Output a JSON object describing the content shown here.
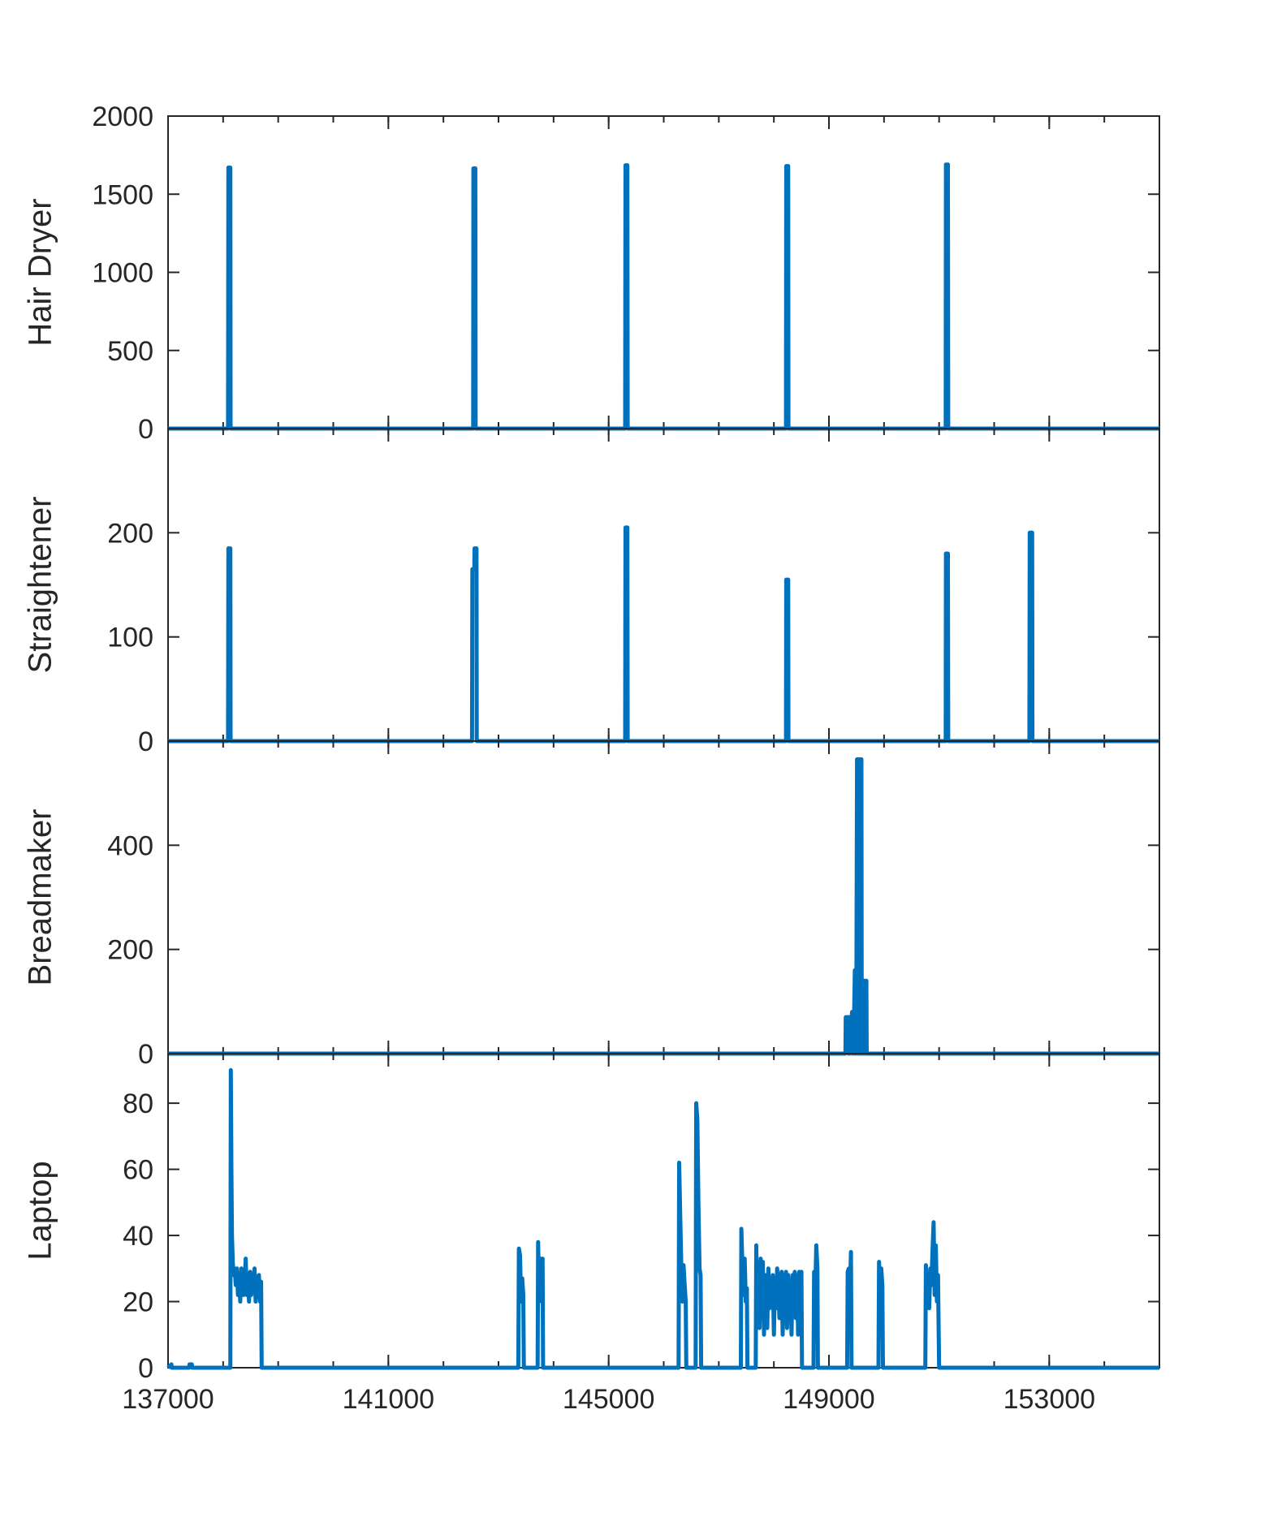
{
  "chart_data": {
    "type": "line",
    "xlim": [
      137000,
      155000
    ],
    "x_ticks": [
      137000,
      141000,
      145000,
      149000,
      153000
    ],
    "x_tick_labels": [
      "137000",
      "141000",
      "145000",
      "149000",
      "153000"
    ],
    "series_color": "#0072BD",
    "grid": false,
    "legend": "none",
    "panels": [
      {
        "ylabel": "Hair Dryer",
        "ylim": [
          0,
          2000
        ],
        "y_ticks": [
          0,
          500,
          1000,
          1500,
          2000
        ],
        "y_tick_labels": [
          "0",
          "500",
          "1000",
          "1500",
          "2000"
        ],
        "series": {
          "x": [
            137000,
            138090,
            138095,
            138130,
            138135,
            142540,
            142545,
            142580,
            142585,
            145300,
            145305,
            145340,
            145345,
            148220,
            148225,
            148260,
            148265,
            151120,
            151125,
            151160,
            151165,
            155000
          ],
          "values": [
            0,
            0,
            1670,
            1670,
            0,
            0,
            1665,
            1665,
            0,
            0,
            1685,
            1685,
            0,
            0,
            1680,
            1680,
            0,
            0,
            1690,
            1690,
            0,
            0
          ]
        }
      },
      {
        "ylabel": "Straightener",
        "ylim": [
          0,
          300
        ],
        "y_ticks": [
          0,
          100,
          200
        ],
        "y_tick_labels": [
          "0",
          "100",
          "200"
        ],
        "series": {
          "x": [
            137000,
            138090,
            138095,
            138130,
            138135,
            142520,
            142525,
            142560,
            142565,
            142600,
            142605,
            145300,
            145305,
            145340,
            145345,
            148220,
            148225,
            148260,
            148265,
            151120,
            151125,
            151160,
            151165,
            152640,
            152645,
            152690,
            152695,
            155000
          ],
          "values": [
            0,
            0,
            185,
            185,
            0,
            0,
            165,
            165,
            185,
            185,
            0,
            0,
            205,
            205,
            0,
            0,
            155,
            155,
            0,
            0,
            180,
            180,
            0,
            0,
            200,
            200,
            0,
            0
          ]
        }
      },
      {
        "ylabel": "Breadmaker",
        "ylim": [
          0,
          600
        ],
        "y_ticks": [
          0,
          200,
          400
        ],
        "y_tick_labels": [
          "0",
          "200",
          "400"
        ],
        "series": {
          "x": [
            137000,
            149300,
            149305,
            149350,
            149355,
            149370,
            149375,
            149420,
            149425,
            149440,
            149445,
            149470,
            149475,
            149490,
            149495,
            149510,
            149515,
            149530,
            149535,
            149550,
            149555,
            149560,
            149565,
            149575,
            149580,
            149590,
            149595,
            149605,
            149610,
            149620,
            149625,
            149640,
            149645,
            149660,
            149665,
            149680,
            149685,
            155000
          ],
          "values": [
            0,
            0,
            70,
            70,
            0,
            70,
            0,
            80,
            0,
            80,
            0,
            160,
            0,
            160,
            0,
            565,
            565,
            565,
            0,
            565,
            0,
            565,
            0,
            565,
            0,
            565,
            0,
            140,
            0,
            140,
            0,
            140,
            0,
            140,
            0,
            140,
            0,
            0
          ]
        }
      },
      {
        "ylabel": "Laptop",
        "ylim": [
          0,
          95
        ],
        "y_ticks": [
          0,
          20,
          40,
          60,
          80
        ],
        "y_tick_labels": [
          "0",
          "20",
          "40",
          "60",
          "80"
        ],
        "series": {
          "x": [
            137000,
            137060,
            137070,
            137380,
            137390,
            137430,
            137440,
            138130,
            138140,
            138150,
            138160,
            138175,
            138190,
            138210,
            138230,
            138250,
            138270,
            138290,
            138310,
            138330,
            138350,
            138370,
            138390,
            138410,
            138430,
            138450,
            138470,
            138490,
            138510,
            138530,
            138550,
            138570,
            138590,
            138610,
            138630,
            138650,
            138670,
            138690,
            138700,
            143360,
            143370,
            143390,
            143410,
            143430,
            143450,
            143460,
            143710,
            143720,
            143740,
            143760,
            143780,
            143800,
            143810,
            146270,
            146280,
            146300,
            146320,
            146340,
            146360,
            146380,
            146400,
            146410,
            146580,
            146590,
            146610,
            146630,
            146650,
            146670,
            146680,
            147400,
            147410,
            147430,
            147450,
            147470,
            147490,
            147510,
            147520,
            147670,
            147680,
            147700,
            147720,
            147740,
            147760,
            147780,
            147800,
            147820,
            147840,
            147860,
            147880,
            147900,
            147920,
            147940,
            147960,
            147980,
            148000,
            148020,
            148040,
            148060,
            148080,
            148100,
            148120,
            148140,
            148160,
            148180,
            148200,
            148220,
            148240,
            148260,
            148280,
            148300,
            148320,
            148340,
            148360,
            148380,
            148400,
            148420,
            148440,
            148460,
            148480,
            148500,
            148510,
            148720,
            148730,
            148750,
            148770,
            148790,
            148800,
            149330,
            149340,
            149360,
            149380,
            149400,
            149410,
            149900,
            149910,
            149930,
            149950,
            149970,
            149980,
            150750,
            150760,
            150780,
            150800,
            150820,
            150840,
            150860,
            150880,
            150900,
            150920,
            150940,
            150960,
            150980,
            151000,
            151010,
            155000
          ],
          "values": [
            0,
            1,
            0,
            0,
            1,
            1,
            0,
            0,
            90,
            60,
            40,
            32,
            28,
            30,
            25,
            30,
            22,
            28,
            20,
            30,
            24,
            22,
            26,
            33,
            22,
            28,
            20,
            29,
            22,
            28,
            24,
            30,
            20,
            27,
            23,
            28,
            20,
            26,
            0,
            0,
            36,
            34,
            20,
            27,
            22,
            0,
            0,
            38,
            20,
            33,
            24,
            33,
            0,
            0,
            62,
            45,
            30,
            20,
            31,
            25,
            20,
            0,
            0,
            80,
            75,
            50,
            30,
            28,
            0,
            0,
            42,
            30,
            22,
            33,
            20,
            24,
            0,
            0,
            37,
            15,
            30,
            12,
            33,
            20,
            32,
            10,
            28,
            25,
            12,
            30,
            18,
            25,
            22,
            28,
            10,
            27,
            18,
            30,
            25,
            15,
            22,
            29,
            10,
            28,
            20,
            29,
            12,
            28,
            22,
            25,
            10,
            28,
            20,
            29,
            15,
            28,
            10,
            29,
            20,
            29,
            0,
            0,
            29,
            22,
            37,
            30,
            0,
            0,
            29,
            30,
            22,
            35,
            0,
            0,
            32,
            22,
            30,
            25,
            0,
            0,
            31,
            22,
            28,
            18,
            30,
            25,
            35,
            44,
            22,
            37,
            20,
            28,
            0,
            0,
            0
          ]
        }
      }
    ]
  }
}
